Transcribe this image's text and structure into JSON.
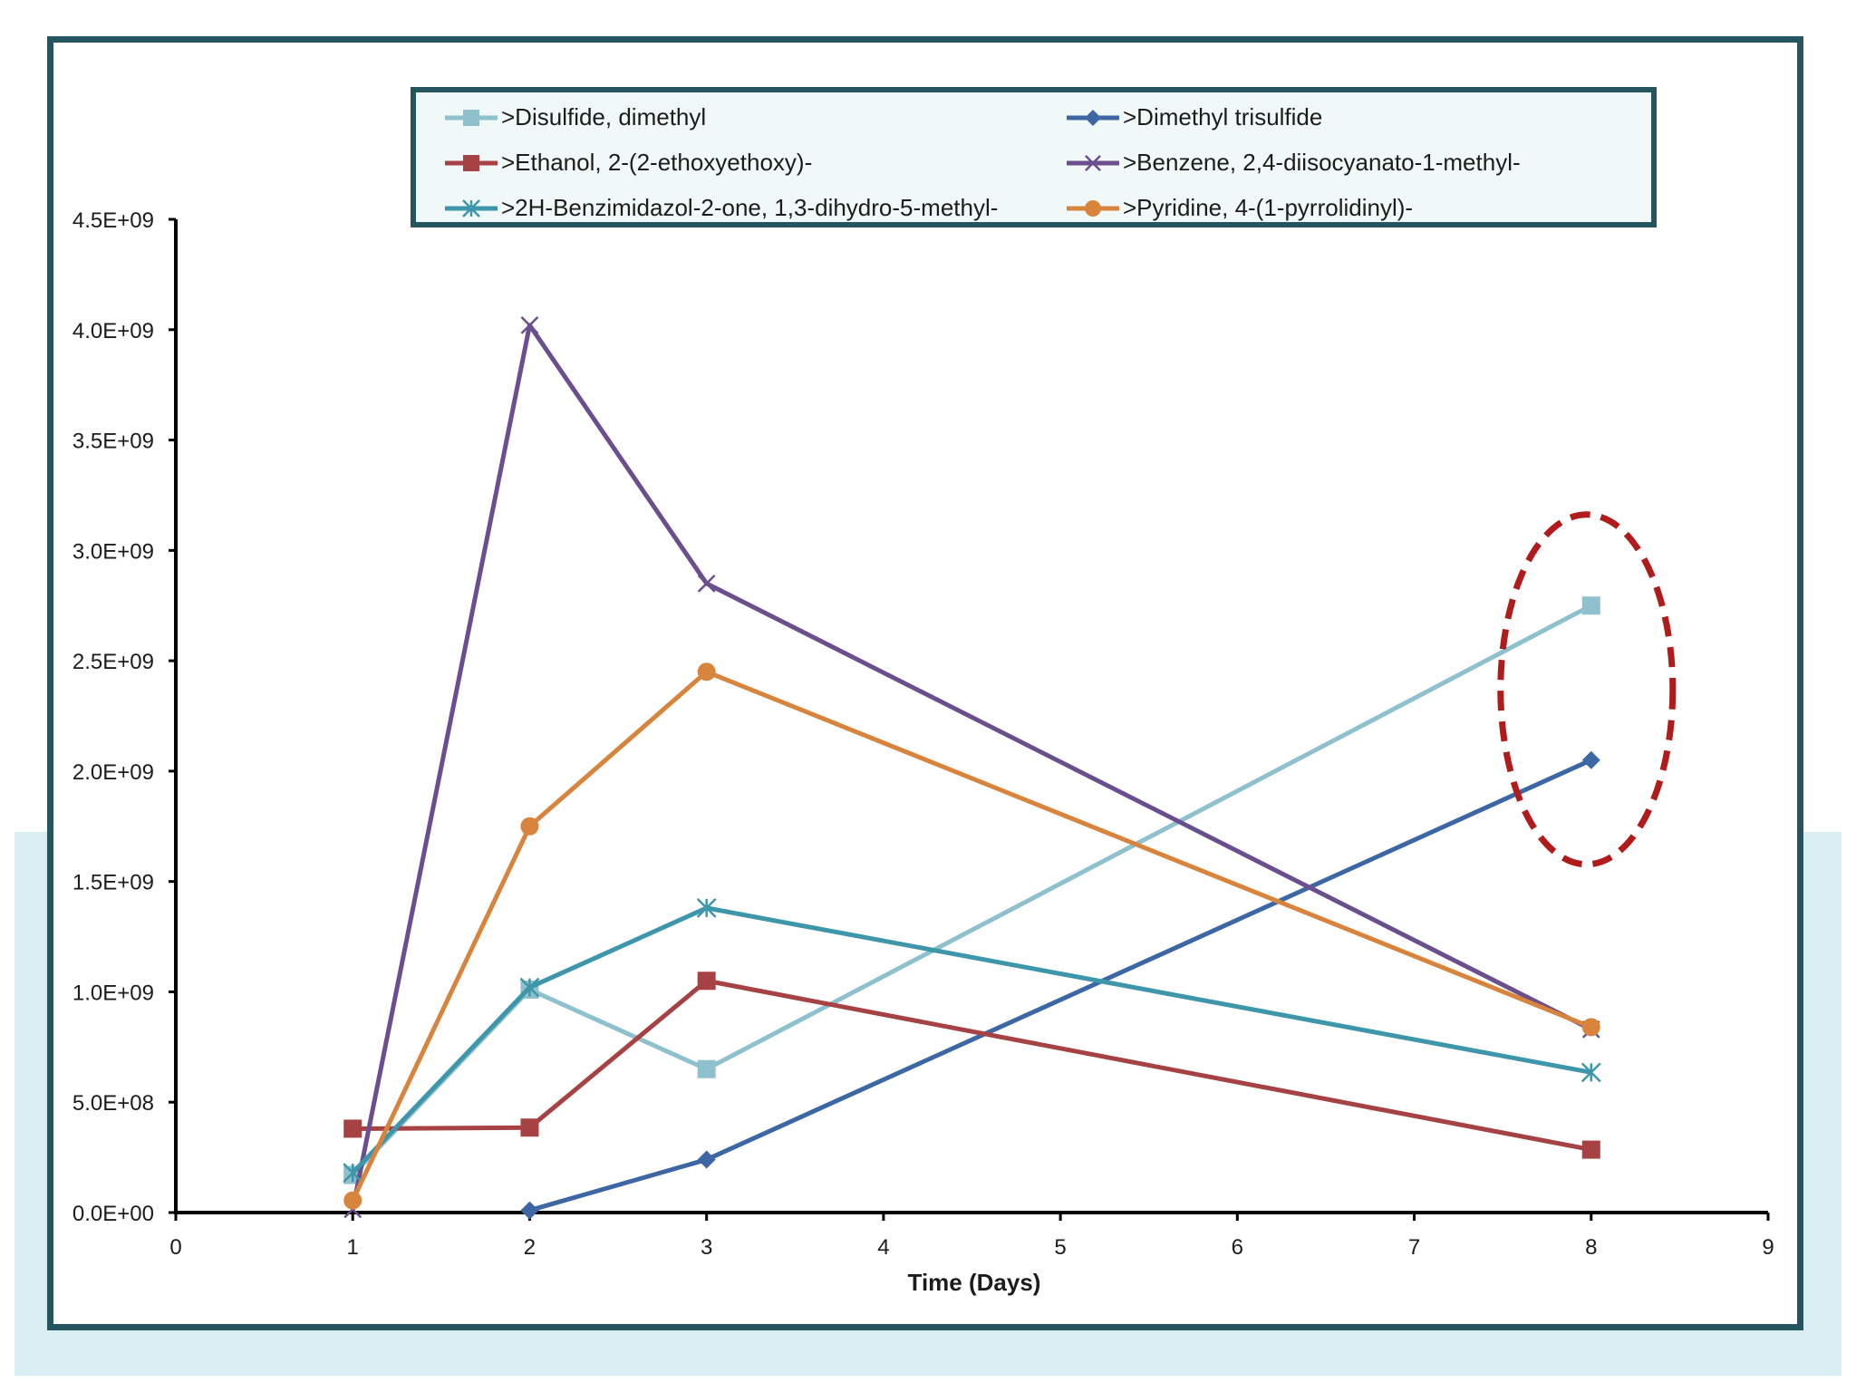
{
  "chart_data": {
    "type": "line",
    "title": "",
    "xlabel": "Time (Days)",
    "ylabel": "",
    "xlim": [
      0,
      9
    ],
    "ylim": [
      0,
      4500000000
    ],
    "x_ticks": [
      0,
      1,
      2,
      3,
      4,
      5,
      6,
      7,
      8,
      9
    ],
    "x_tick_labels": [
      "0",
      "1",
      "2",
      "3",
      "4",
      "5",
      "6",
      "7",
      "8",
      "9"
    ],
    "y_ticks": [
      0,
      500000000,
      1000000000,
      1500000000,
      2000000000,
      2500000000,
      3000000000,
      3500000000,
      4000000000,
      4500000000
    ],
    "y_tick_labels": [
      "0.0E+00",
      "5.0E+08",
      "1.0E+09",
      "1.5E+09",
      "2.0E+09",
      "2.5E+09",
      "3.0E+09",
      "3.5E+09",
      "4.0E+09",
      "4.5E+09"
    ],
    "grid": false,
    "legend_position": "top",
    "series": [
      {
        "name": ">Disulfide, dimethyl",
        "color": "#8fc0ce",
        "marker": "square",
        "points": [
          [
            1,
            170000000
          ],
          [
            2,
            1010000000
          ],
          [
            3,
            650000000
          ],
          [
            8,
            2750000000
          ]
        ]
      },
      {
        "name": ">Dimethyl trisulfide",
        "color": "#3d67a4",
        "marker": "diamond",
        "points": [
          [
            2,
            10000000
          ],
          [
            3,
            240000000
          ],
          [
            8,
            2050000000
          ]
        ]
      },
      {
        "name": ">Ethanol, 2-(2-ethoxyethoxy)-",
        "color": "#a64243",
        "marker": "square",
        "points": [
          [
            1,
            380000000
          ],
          [
            2,
            385000000
          ],
          [
            3,
            1050000000
          ],
          [
            8,
            285000000
          ]
        ]
      },
      {
        "name": ">Benzene, 2,4-diisocyanato-1-methyl-",
        "color": "#6b4e8e",
        "marker": "x",
        "points": [
          [
            1,
            15000000
          ],
          [
            2,
            4020000000
          ],
          [
            3,
            2850000000
          ],
          [
            8,
            830000000
          ]
        ]
      },
      {
        "name": ">2H-Benzimidazol-2-one, 1,3-dihydro-5-methyl-",
        "color": "#3d96aa",
        "marker": "star",
        "points": [
          [
            1,
            180000000
          ],
          [
            2,
            1020000000
          ],
          [
            3,
            1380000000
          ],
          [
            8,
            635000000
          ]
        ]
      },
      {
        "name": ">Pyridine, 4-(1-pyrrolidinyl)-",
        "color": "#d9843c",
        "marker": "circle",
        "points": [
          [
            1,
            55000000
          ],
          [
            2,
            1750000000
          ],
          [
            3,
            2450000000
          ],
          [
            8,
            840000000
          ]
        ]
      }
    ],
    "annotation": {
      "type": "dashed-ellipse",
      "color": "#b01b1b",
      "center_x": 8.0,
      "center_y": 2370000000
    }
  }
}
